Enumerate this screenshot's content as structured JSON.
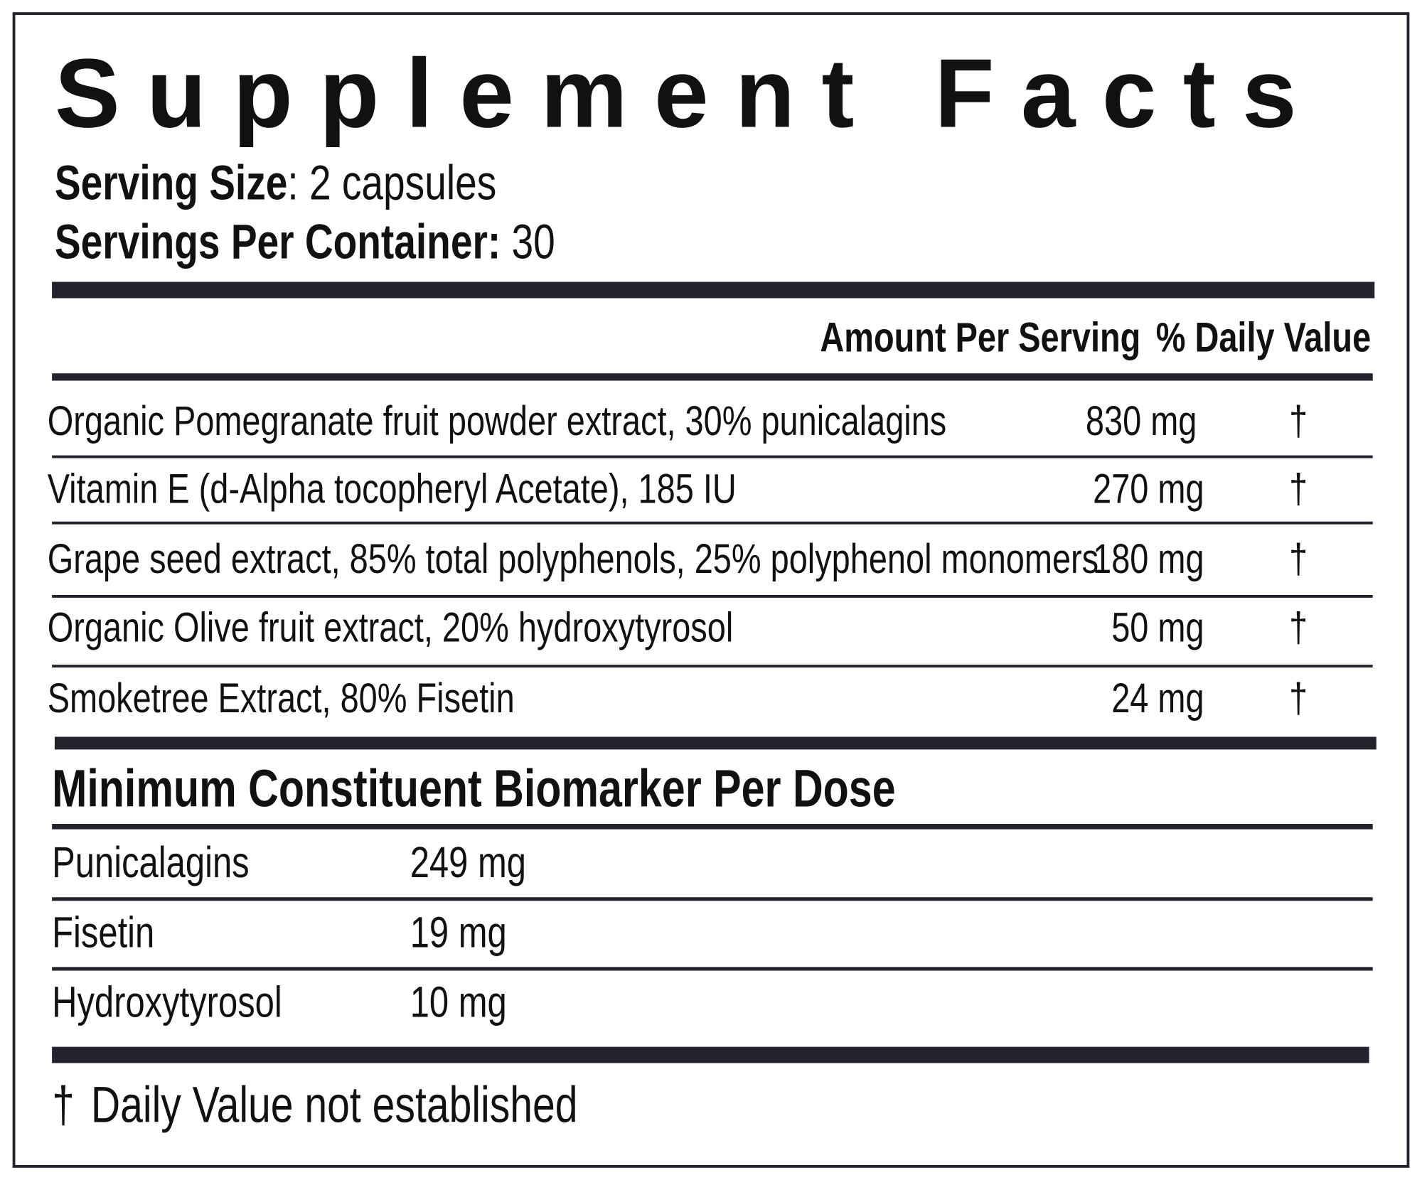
{
  "header": {
    "title": "Supplement Facts",
    "serving_size": {
      "label": "Serving Size",
      "value": ": 2 capsules"
    },
    "servings_per_container": {
      "label": "Servings Per Container:",
      "value": "30"
    }
  },
  "columns": {
    "amount": "Amount Per Serving",
    "daily_value": "% Daily Value"
  },
  "ingredients": [
    {
      "name": "Organic Pomegranate fruit powder extract, 30% punicalagins",
      "amount": "830 mg",
      "daily_value": "†"
    },
    {
      "name": "Vitamin E (d-Alpha tocopheryl Acetate), 185 IU",
      "amount": "270 mg",
      "daily_value": "†"
    },
    {
      "name": "Grape seed extract, 85% total polyphenols, 25% polyphenol monomers",
      "amount": "180 mg",
      "daily_value": "†"
    },
    {
      "name": "Organic Olive fruit extract, 20% hydroxytyrosol",
      "amount": "50 mg",
      "daily_value": "†"
    },
    {
      "name": "Smoketree Extract, 80% Fisetin",
      "amount": "24 mg",
      "daily_value": "†"
    }
  ],
  "biomarkers": {
    "title": "Minimum Constituent Biomarker Per Dose",
    "rows": [
      {
        "name": "Punicalagins",
        "amount": "249 mg"
      },
      {
        "name": "Fisetin",
        "amount": "19 mg"
      },
      {
        "name": "Hydroxytyrosol",
        "amount": "10 mg"
      }
    ]
  },
  "footnote": {
    "symbol": "†",
    "text": "Daily Value not established"
  }
}
